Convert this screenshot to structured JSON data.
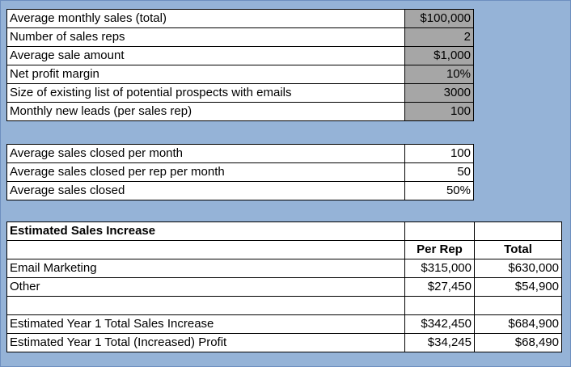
{
  "inputs": [
    {
      "label": "Average monthly sales (total)",
      "value": "$100,000"
    },
    {
      "label": "Number of sales reps",
      "value": "2"
    },
    {
      "label": "Average sale amount",
      "value": "$1,000"
    },
    {
      "label": "Net profit margin",
      "value": "10%"
    },
    {
      "label": "Size of existing list of potential prospects with emails",
      "value": "3000"
    },
    {
      "label": "Monthly new leads (per sales rep)",
      "value": "100"
    }
  ],
  "closing": [
    {
      "label": "Average sales closed per month",
      "value": "100"
    },
    {
      "label": "Average sales closed per rep per month",
      "value": "50"
    },
    {
      "label": "Average sales closed",
      "value": "50%"
    }
  ],
  "increase": {
    "title": "Estimated Sales Increase",
    "col_per_rep": "Per Rep",
    "col_total": "Total",
    "rows": [
      {
        "label": "Email Marketing",
        "per_rep": "$315,000",
        "total": "$630,000"
      },
      {
        "label": "Other",
        "per_rep": "$27,450",
        "total": "$54,900"
      }
    ],
    "totals": [
      {
        "label": "Estimated Year 1 Total Sales Increase",
        "per_rep": "$342,450",
        "total": "$684,900"
      },
      {
        "label": "Estimated Year 1 Total (Increased) Profit",
        "per_rep": "$34,245",
        "total": "$68,490"
      }
    ]
  }
}
